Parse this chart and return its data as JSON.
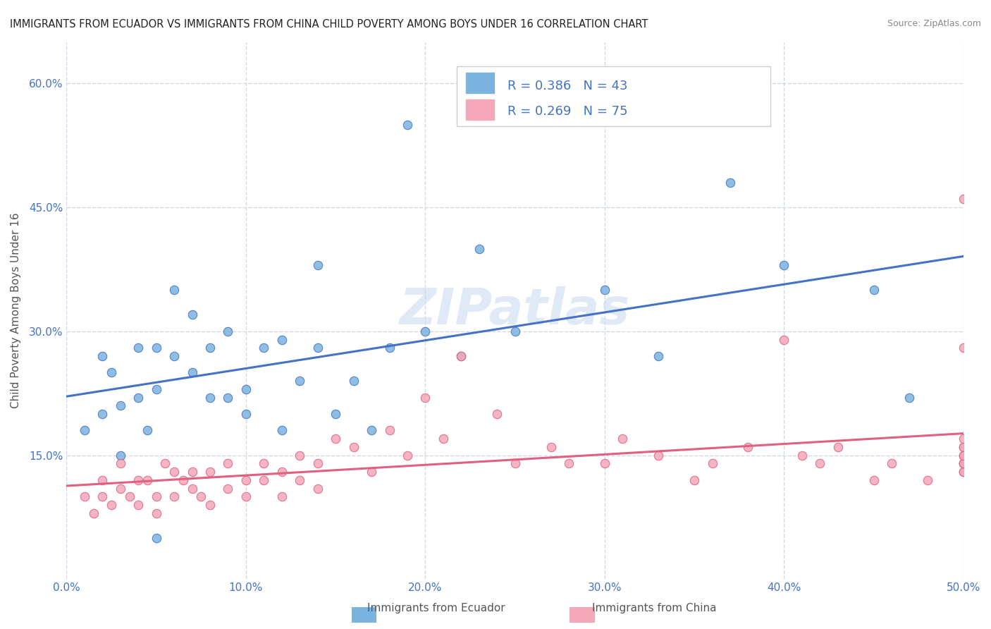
{
  "title": "IMMIGRANTS FROM ECUADOR VS IMMIGRANTS FROM CHINA CHILD POVERTY AMONG BOYS UNDER 16 CORRELATION CHART",
  "source": "Source: ZipAtlas.com",
  "ylabel": "Child Poverty Among Boys Under 16",
  "xlabel": "",
  "xlim": [
    0.0,
    0.5
  ],
  "ylim": [
    0.0,
    0.65
  ],
  "yticks": [
    0.15,
    0.3,
    0.45,
    0.6
  ],
  "ytick_labels": [
    "15.0%",
    "30.0%",
    "45.0%",
    "60.0%"
  ],
  "xticks": [
    0.0,
    0.1,
    0.2,
    0.3,
    0.4,
    0.5
  ],
  "xtick_labels": [
    "0.0%",
    "10.0%",
    "20.0%",
    "30.0%",
    "40.0%",
    "50.0%"
  ],
  "ecuador_color": "#7ab3e0",
  "china_color": "#f4a7b9",
  "ecuador_line_color": "#4472c4",
  "china_line_color": "#e06080",
  "ecuador_R": 0.386,
  "ecuador_N": 43,
  "china_R": 0.269,
  "china_N": 75,
  "legend_label_ecuador": "Immigrants from Ecuador",
  "legend_label_china": "Immigrants from China",
  "watermark": "ZIPatlas",
  "background_color": "#ffffff",
  "grid_color": "#d0d8e8",
  "ecuador_scatter_x": [
    0.01,
    0.02,
    0.02,
    0.025,
    0.03,
    0.03,
    0.04,
    0.04,
    0.045,
    0.05,
    0.05,
    0.05,
    0.06,
    0.06,
    0.07,
    0.07,
    0.08,
    0.08,
    0.09,
    0.09,
    0.1,
    0.1,
    0.11,
    0.12,
    0.12,
    0.13,
    0.14,
    0.14,
    0.15,
    0.16,
    0.17,
    0.18,
    0.19,
    0.2,
    0.22,
    0.23,
    0.25,
    0.3,
    0.33,
    0.37,
    0.4,
    0.45,
    0.47
  ],
  "ecuador_scatter_y": [
    0.18,
    0.2,
    0.27,
    0.25,
    0.15,
    0.21,
    0.22,
    0.28,
    0.18,
    0.23,
    0.28,
    0.05,
    0.27,
    0.35,
    0.32,
    0.25,
    0.28,
    0.22,
    0.22,
    0.3,
    0.2,
    0.23,
    0.28,
    0.29,
    0.18,
    0.24,
    0.28,
    0.38,
    0.2,
    0.24,
    0.18,
    0.28,
    0.55,
    0.3,
    0.27,
    0.4,
    0.3,
    0.35,
    0.27,
    0.48,
    0.38,
    0.35,
    0.22
  ],
  "china_scatter_x": [
    0.01,
    0.015,
    0.02,
    0.02,
    0.025,
    0.03,
    0.03,
    0.035,
    0.04,
    0.04,
    0.045,
    0.05,
    0.05,
    0.055,
    0.06,
    0.06,
    0.065,
    0.07,
    0.07,
    0.075,
    0.08,
    0.08,
    0.09,
    0.09,
    0.1,
    0.1,
    0.11,
    0.11,
    0.12,
    0.12,
    0.13,
    0.13,
    0.14,
    0.14,
    0.15,
    0.16,
    0.17,
    0.18,
    0.19,
    0.2,
    0.21,
    0.22,
    0.24,
    0.25,
    0.27,
    0.28,
    0.3,
    0.31,
    0.33,
    0.35,
    0.36,
    0.38,
    0.4,
    0.41,
    0.42,
    0.43,
    0.45,
    0.46,
    0.48,
    0.5,
    0.5,
    0.5,
    0.5,
    0.5,
    0.5,
    0.5,
    0.5,
    0.5,
    0.5,
    0.5,
    0.5,
    0.5,
    0.5,
    0.5,
    0.5
  ],
  "china_scatter_y": [
    0.1,
    0.08,
    0.1,
    0.12,
    0.09,
    0.11,
    0.14,
    0.1,
    0.12,
    0.09,
    0.12,
    0.1,
    0.08,
    0.14,
    0.13,
    0.1,
    0.12,
    0.11,
    0.13,
    0.1,
    0.13,
    0.09,
    0.14,
    0.11,
    0.12,
    0.1,
    0.14,
    0.12,
    0.13,
    0.1,
    0.15,
    0.12,
    0.14,
    0.11,
    0.17,
    0.16,
    0.13,
    0.18,
    0.15,
    0.22,
    0.17,
    0.27,
    0.2,
    0.14,
    0.16,
    0.14,
    0.14,
    0.17,
    0.15,
    0.12,
    0.14,
    0.16,
    0.29,
    0.15,
    0.14,
    0.16,
    0.12,
    0.14,
    0.12,
    0.28,
    0.15,
    0.16,
    0.13,
    0.46,
    0.14,
    0.14,
    0.16,
    0.13,
    0.15,
    0.13,
    0.14,
    0.16,
    0.14,
    0.15,
    0.17
  ]
}
